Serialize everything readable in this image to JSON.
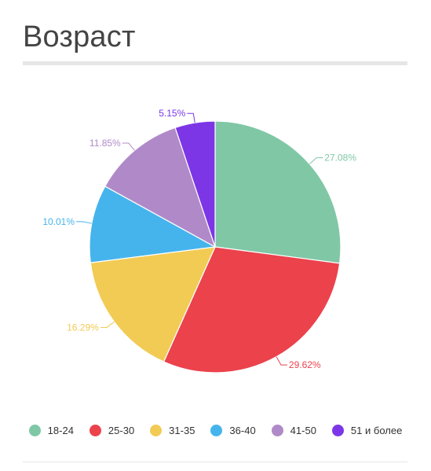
{
  "title": "Возраст",
  "chart_data": {
    "type": "pie",
    "categories": [
      "18-24",
      "25-30",
      "31-35",
      "36-40",
      "41-50",
      "51 и более"
    ],
    "values": [
      27.08,
      29.62,
      16.29,
      10.01,
      11.85,
      5.15
    ],
    "labels": [
      "27.08%",
      "29.62%",
      "16.29%",
      "10.01%",
      "11.85%",
      "5.15%"
    ],
    "colors": [
      "#80c7a6",
      "#eb424c",
      "#f2cb55",
      "#46b4ec",
      "#b08ac8",
      "#7c36e6"
    ],
    "legend_position": "bottom"
  }
}
